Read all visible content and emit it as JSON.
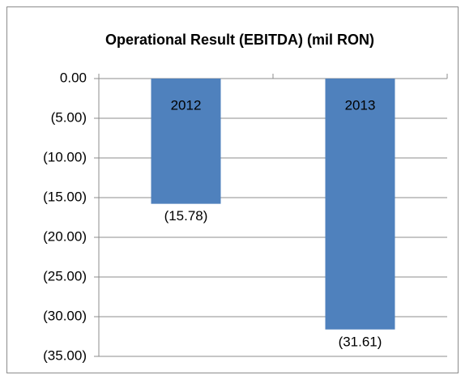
{
  "chart_data": {
    "type": "bar",
    "title": "Operational Result (EBITDA) (mil RON)",
    "categories": [
      "2012",
      "2013"
    ],
    "values": [
      -15.78,
      -31.61
    ],
    "value_labels": [
      "(15.78)",
      "(31.61)"
    ],
    "color": "#4f81bd",
    "ylim": [
      -35,
      0
    ],
    "yticks": [
      {
        "value": 0,
        "label": "0.00"
      },
      {
        "value": -5,
        "label": "(5.00)"
      },
      {
        "value": -10,
        "label": "(10.00)"
      },
      {
        "value": -15,
        "label": "(15.00)"
      },
      {
        "value": -20,
        "label": "(20.00)"
      },
      {
        "value": -25,
        "label": "(25.00)"
      },
      {
        "value": -30,
        "label": "(30.00)"
      },
      {
        "value": -35,
        "label": "(35.00)"
      }
    ],
    "grid": true
  }
}
